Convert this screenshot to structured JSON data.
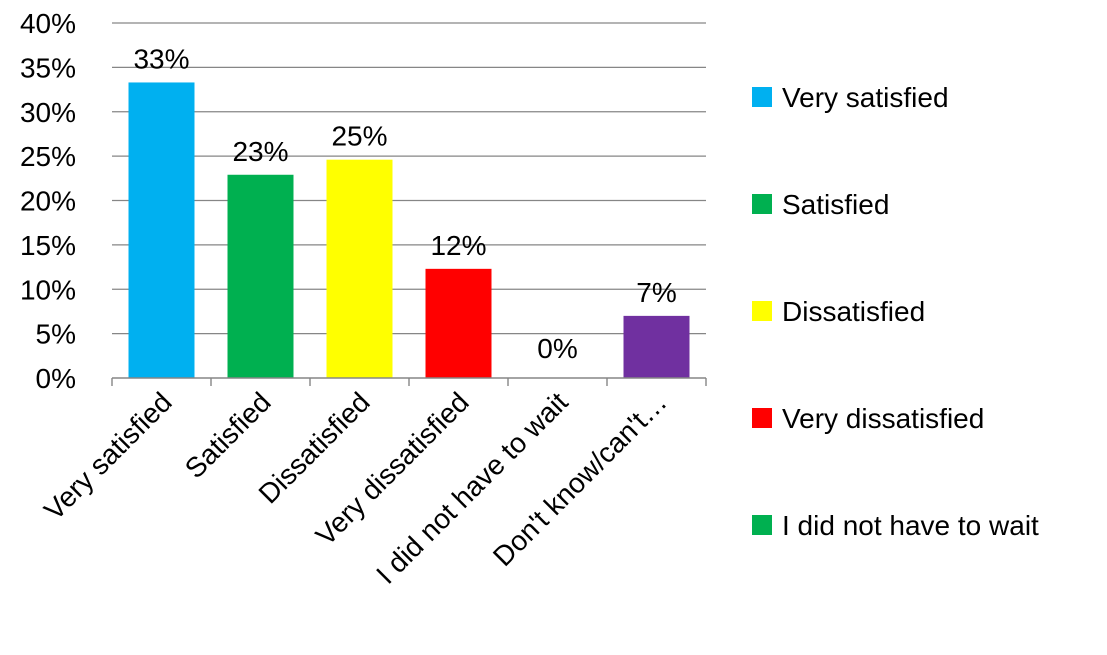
{
  "chart_data": {
    "type": "bar",
    "title": "",
    "xlabel": "",
    "ylabel": "",
    "ylim": [
      0,
      40
    ],
    "y_ticks": [
      "0%",
      "5%",
      "10%",
      "15%",
      "20%",
      "25%",
      "30%",
      "35%",
      "40%"
    ],
    "grid": true,
    "legend_position": "right",
    "categories": [
      "Very satisfied",
      "Satisfied",
      "Dissatisfied",
      "Very dissatisfied",
      "I did not have to wait",
      "Don't know/can't…"
    ],
    "values": [
      33.3,
      22.9,
      24.6,
      12.3,
      0,
      7.0
    ],
    "data_labels": [
      "33%",
      "23%",
      "25%",
      "12%",
      "0%",
      "7%"
    ],
    "colors": [
      "#00B0F0",
      "#00B050",
      "#FFFF00",
      "#FF0000",
      "#00B050",
      "#7030A0"
    ],
    "legend": [
      {
        "label": "Very satisfied",
        "color": "#00B0F0"
      },
      {
        "label": "Satisfied",
        "color": "#00B050"
      },
      {
        "label": "Dissatisfied",
        "color": "#FFFF00"
      },
      {
        "label": "Very dissatisfied",
        "color": "#FF0000"
      },
      {
        "label": "I did not have to wait",
        "color": "#00B050"
      }
    ]
  }
}
